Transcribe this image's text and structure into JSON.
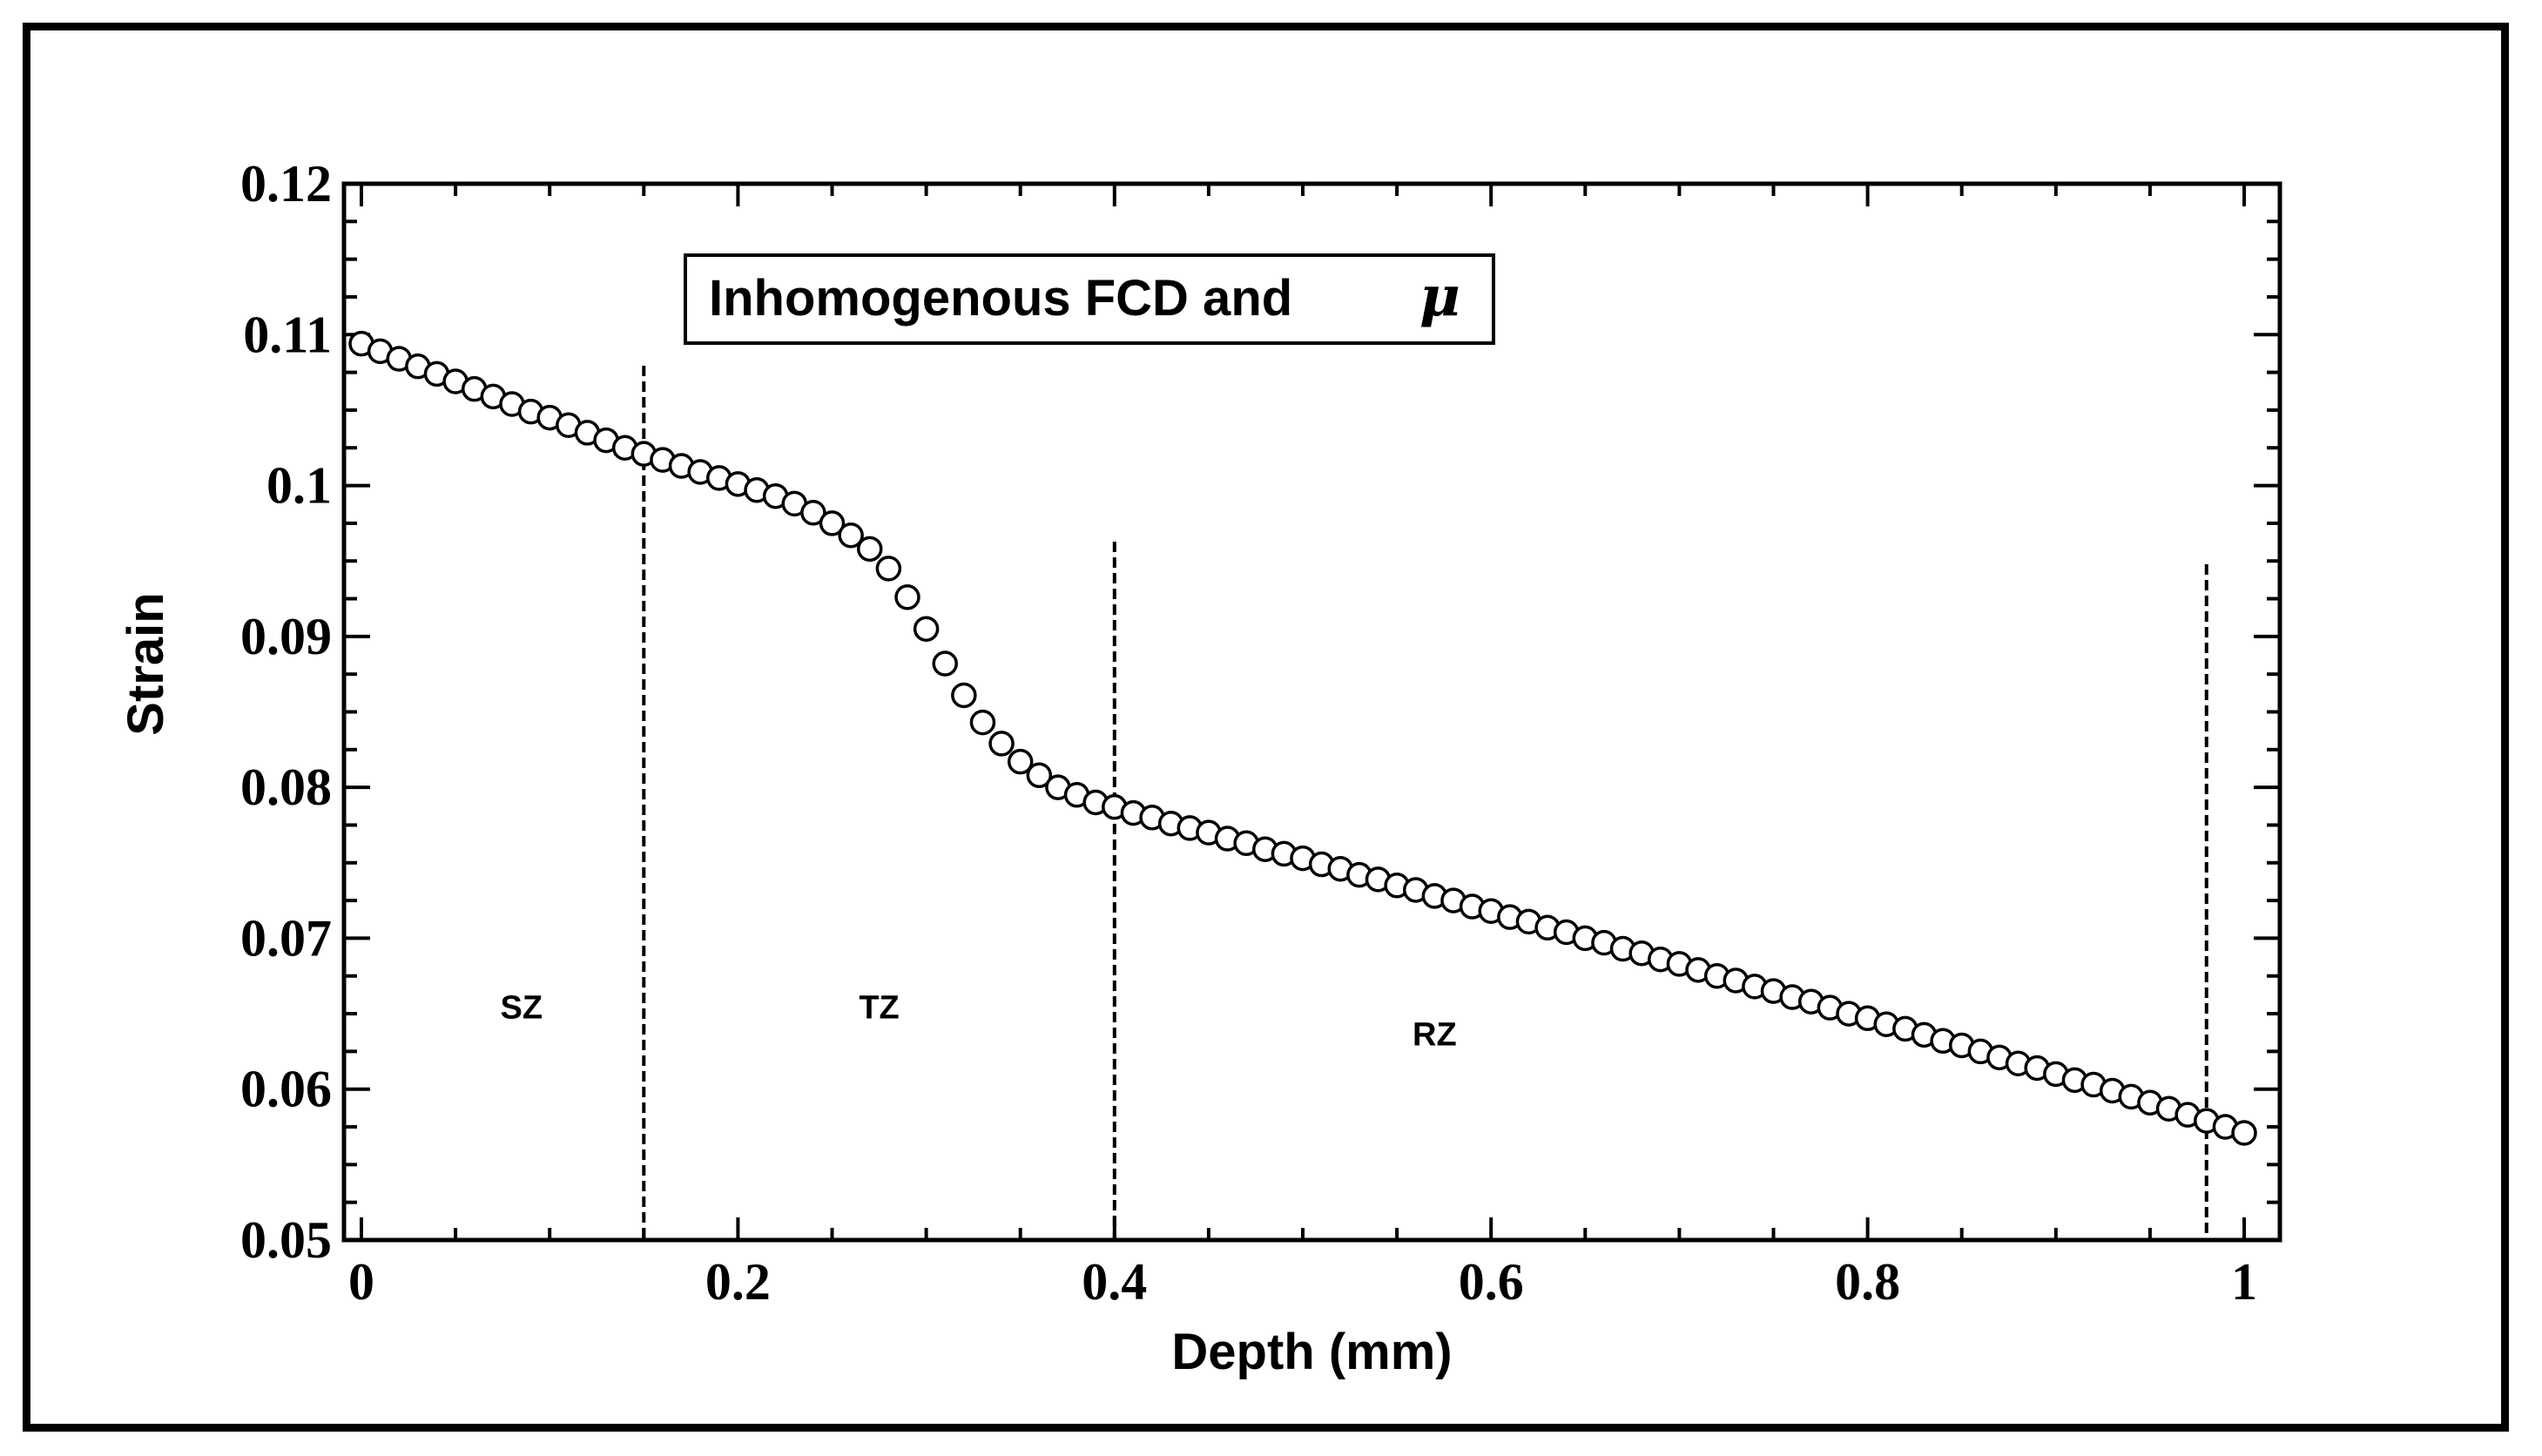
{
  "chart_data": {
    "type": "scatter",
    "title": "",
    "xlabel": "Depth (mm)",
    "ylabel": "Strain",
    "xlim": [
      0,
      1
    ],
    "ylim": [
      0.05,
      0.12
    ],
    "xticks": [
      {
        "value": 0,
        "label": "0"
      },
      {
        "value": 0.2,
        "label": "0.2"
      },
      {
        "value": 0.4,
        "label": "0.4"
      },
      {
        "value": 0.6,
        "label": "0.6"
      },
      {
        "value": 0.8,
        "label": "0.8"
      },
      {
        "value": 1,
        "label": "1"
      }
    ],
    "yticks": [
      {
        "value": 0.05,
        "label": "0.05"
      },
      {
        "value": 0.06,
        "label": "0.06"
      },
      {
        "value": 0.07,
        "label": "0.07"
      },
      {
        "value": 0.08,
        "label": "0.08"
      },
      {
        "value": 0.09,
        "label": "0.09"
      },
      {
        "value": 0.1,
        "label": "0.1"
      },
      {
        "value": 0.11,
        "label": "0.11"
      },
      {
        "value": 0.12,
        "label": "0.12"
      }
    ],
    "legend": {
      "text": "Inhomogenous FCD and",
      "symbol": "μ",
      "placement": "top-center"
    },
    "zone_boundaries": [
      0.15,
      0.4,
      0.98
    ],
    "zone_labels": [
      {
        "label": "SZ",
        "x": 0.085,
        "y": 0.0655
      },
      {
        "label": "TZ",
        "x": 0.275,
        "y": 0.0655
      },
      {
        "label": "RZ",
        "x": 0.57,
        "y": 0.0637
      }
    ],
    "series": [
      {
        "name": "Inhomogenous FCD and μ",
        "marker": "open-circle",
        "x": [
          0.0,
          0.01,
          0.02,
          0.03,
          0.04,
          0.05,
          0.06,
          0.07,
          0.08,
          0.09,
          0.1,
          0.11,
          0.12,
          0.13,
          0.14,
          0.15,
          0.16,
          0.17,
          0.18,
          0.19,
          0.2,
          0.21,
          0.22,
          0.23,
          0.24,
          0.25,
          0.26,
          0.27,
          0.28,
          0.29,
          0.3,
          0.31,
          0.32,
          0.33,
          0.34,
          0.35,
          0.36,
          0.37,
          0.38,
          0.39,
          0.4,
          0.41,
          0.42,
          0.43,
          0.44,
          0.45,
          0.46,
          0.47,
          0.48,
          0.49,
          0.5,
          0.51,
          0.52,
          0.53,
          0.54,
          0.55,
          0.56,
          0.57,
          0.58,
          0.59,
          0.6,
          0.61,
          0.62,
          0.63,
          0.64,
          0.65,
          0.66,
          0.67,
          0.68,
          0.69,
          0.7,
          0.71,
          0.72,
          0.73,
          0.74,
          0.75,
          0.76,
          0.77,
          0.78,
          0.79,
          0.8,
          0.81,
          0.82,
          0.83,
          0.84,
          0.85,
          0.86,
          0.87,
          0.88,
          0.89,
          0.9,
          0.91,
          0.92,
          0.93,
          0.94,
          0.95,
          0.96,
          0.97,
          0.98,
          0.99,
          1.0
        ],
        "y": [
          0.1094,
          0.1089,
          0.1084,
          0.1079,
          0.1074,
          0.1069,
          0.1064,
          0.1059,
          0.1054,
          0.1049,
          0.1045,
          0.104,
          0.1035,
          0.103,
          0.1025,
          0.1021,
          0.1017,
          0.1013,
          0.1009,
          0.1005,
          0.1001,
          0.0997,
          0.0993,
          0.0988,
          0.0982,
          0.0975,
          0.0967,
          0.0958,
          0.0945,
          0.0926,
          0.0905,
          0.0882,
          0.0861,
          0.0843,
          0.0829,
          0.0817,
          0.0808,
          0.08,
          0.0795,
          0.079,
          0.0787,
          0.0783,
          0.078,
          0.0776,
          0.0773,
          0.077,
          0.0766,
          0.0763,
          0.0759,
          0.0756,
          0.0753,
          0.0749,
          0.0746,
          0.0742,
          0.0739,
          0.0735,
          0.0732,
          0.0728,
          0.0725,
          0.0721,
          0.0718,
          0.0714,
          0.0711,
          0.0707,
          0.0704,
          0.07,
          0.0697,
          0.0693,
          0.069,
          0.0686,
          0.0683,
          0.0679,
          0.0675,
          0.0672,
          0.0668,
          0.0665,
          0.0661,
          0.0658,
          0.0654,
          0.065,
          0.0647,
          0.0643,
          0.064,
          0.0636,
          0.0632,
          0.0629,
          0.0625,
          0.0621,
          0.0617,
          0.0614,
          0.061,
          0.0606,
          0.0603,
          0.0599,
          0.0595,
          0.0591,
          0.0587,
          0.0583,
          0.0579,
          0.0575,
          0.0571
        ]
      }
    ]
  }
}
